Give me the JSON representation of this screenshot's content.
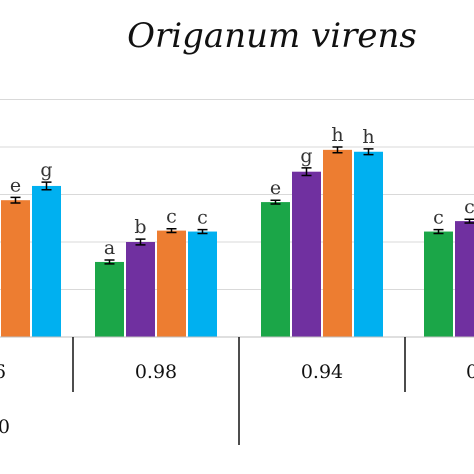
{
  "chart_data": {
    "type": "bar",
    "title": "Origanum virens",
    "xlabel": "",
    "ylabel": "",
    "ylim": [
      0,
      250
    ],
    "gridlines": [
      50,
      100,
      150,
      200,
      250
    ],
    "grid": true,
    "legend": "none",
    "categories": [
      "6",
      "0.98",
      "0.94",
      "0"
    ],
    "second_row_labels": [
      "0"
    ],
    "series_colors": [
      "#1ba648",
      "#7030a0",
      "#ed7d31",
      "#00b0f0"
    ],
    "groups": [
      {
        "category": "6",
        "bars": [
          {
            "series": 2,
            "value": 144,
            "error": 3,
            "letter": "e"
          },
          {
            "series": 3,
            "value": 159,
            "error": 4,
            "letter": "g"
          }
        ]
      },
      {
        "category": "0.98",
        "bars": [
          {
            "series": 0,
            "value": 79,
            "error": 2,
            "letter": "a"
          },
          {
            "series": 1,
            "value": 100,
            "error": 3,
            "letter": "b"
          },
          {
            "series": 2,
            "value": 112,
            "error": 2,
            "letter": "c"
          },
          {
            "series": 3,
            "value": 111,
            "error": 2,
            "letter": "c"
          }
        ]
      },
      {
        "category": "0.94",
        "bars": [
          {
            "series": 0,
            "value": 142,
            "error": 2,
            "letter": "e"
          },
          {
            "series": 1,
            "value": 174,
            "error": 4,
            "letter": "g"
          },
          {
            "series": 2,
            "value": 197,
            "error": 3,
            "letter": "h"
          },
          {
            "series": 3,
            "value": 195,
            "error": 3,
            "letter": "h"
          }
        ]
      },
      {
        "category": "0",
        "bars": [
          {
            "series": 0,
            "value": 111,
            "error": 2,
            "letter": "c"
          },
          {
            "series": 1,
            "value": 122,
            "error": 2,
            "letter": "c"
          }
        ]
      }
    ]
  }
}
